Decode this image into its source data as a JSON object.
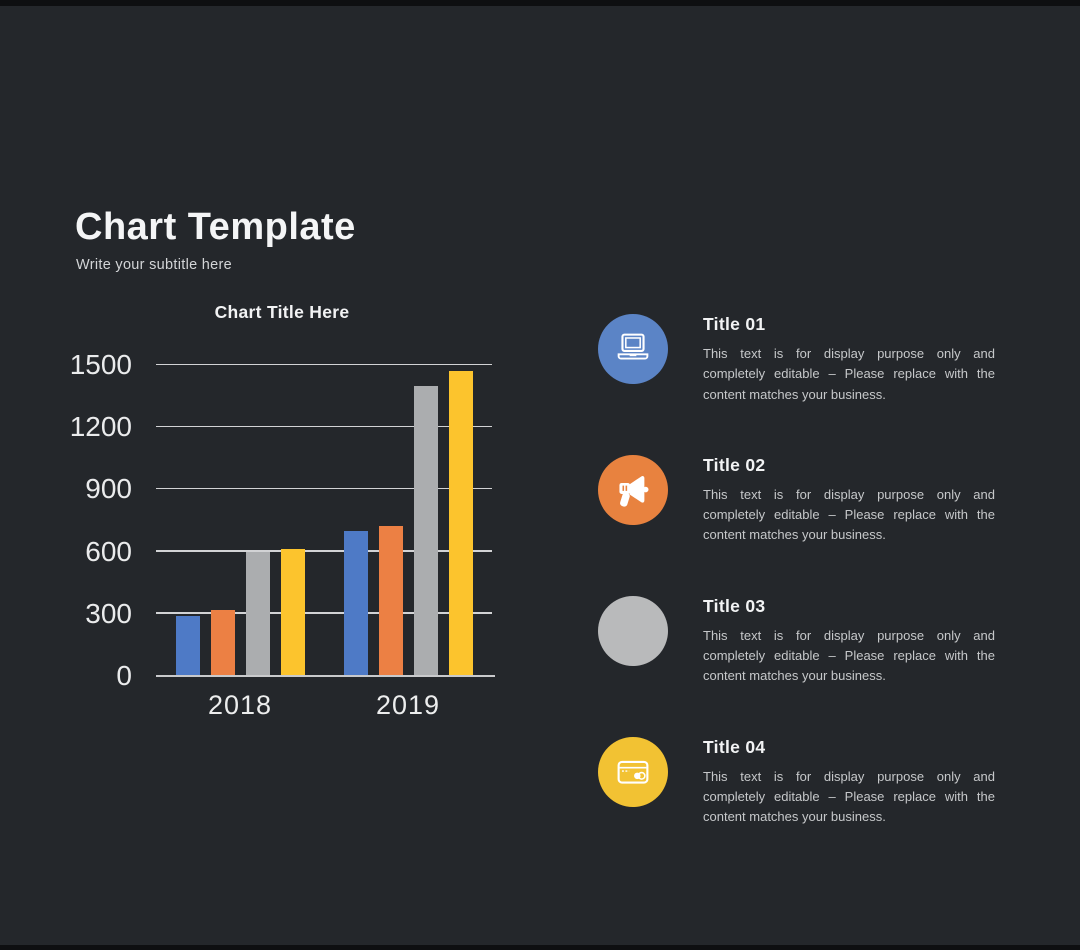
{
  "slide": {
    "title": "Chart Template",
    "subtitle": "Write your subtitle here"
  },
  "chart_data": {
    "type": "bar",
    "title": "Chart Title Here",
    "categories": [
      "2018",
      "2019"
    ],
    "series": [
      {
        "name": "series-1-blue",
        "color": "#4e7ac6",
        "values": [
          290,
          700
        ]
      },
      {
        "name": "series-2-orange",
        "color": "#ec8044",
        "values": [
          320,
          725
        ]
      },
      {
        "name": "series-3-gray",
        "color": "#abadaf",
        "values": [
          600,
          1400
        ]
      },
      {
        "name": "series-4-yellow",
        "color": "#fcc42d",
        "values": [
          615,
          1470
        ]
      }
    ],
    "xlabel": "",
    "ylabel": "",
    "ylim": [
      0,
      1500
    ],
    "yticks": [
      0,
      300,
      600,
      900,
      1200,
      1500
    ],
    "grid": true,
    "legend": "none"
  },
  "features": [
    {
      "title": "Title 01",
      "icon": "laptop-icon",
      "color": "#5b84c6",
      "description": "This text is for display purpose only and completely editable – Please replace with the content matches your business."
    },
    {
      "title": "Title 02",
      "icon": "megaphone-icon",
      "color": "#e8823f",
      "description": "This text is for display purpose only and completely editable – Please replace with the content matches your business."
    },
    {
      "title": "Title 03",
      "icon": "none",
      "color": "#b9babb",
      "description": "This text is for display purpose only and completely editable – Please replace with the content matches your business."
    },
    {
      "title": "Title 04",
      "icon": "credit-card-icon",
      "color": "#f2c233",
      "description": "This text is for display purpose only and completely editable – Please replace with the content matches your business."
    }
  ]
}
